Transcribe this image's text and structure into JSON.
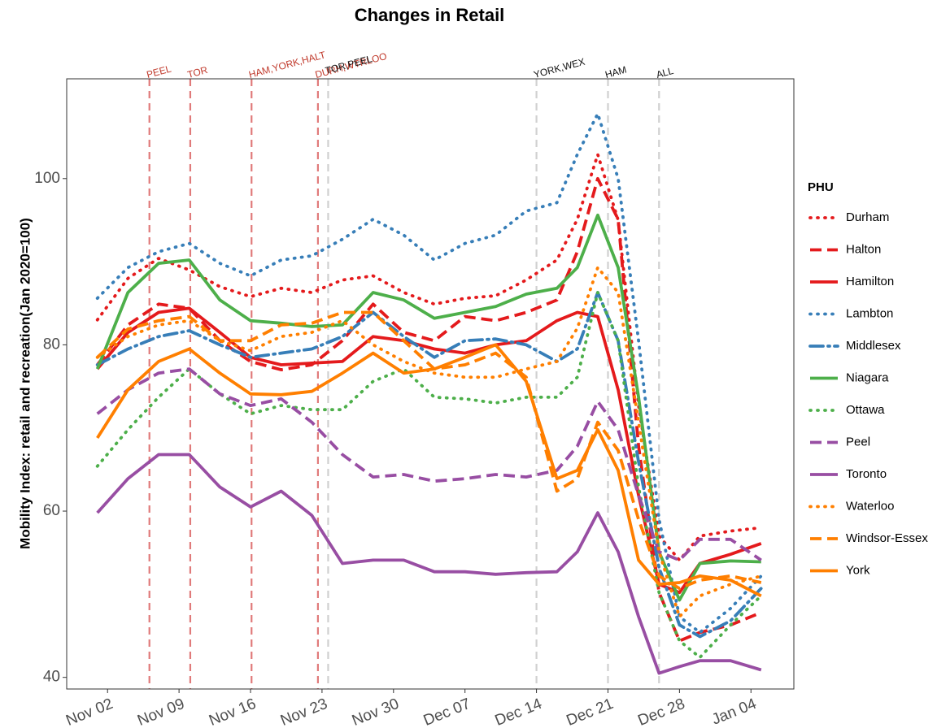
{
  "chart_data": {
    "type": "line",
    "title": "Changes in Retail",
    "y_label": "Mobility Index: retail and recreation(Jan 2020=100)",
    "legend_title": "PHU",
    "xlim": [
      -4,
      67.2
    ],
    "ylim": [
      38.6,
      112
    ],
    "xticks": [
      {
        "value": 0,
        "label": "Nov 02"
      },
      {
        "value": 7,
        "label": "Nov 09"
      },
      {
        "value": 14,
        "label": "Nov 16"
      },
      {
        "value": 21,
        "label": "Nov 23"
      },
      {
        "value": 28,
        "label": "Nov 30"
      },
      {
        "value": 35,
        "label": "Dec 07"
      },
      {
        "value": 42,
        "label": "Dec 14"
      },
      {
        "value": 49,
        "label": "Dec 21"
      },
      {
        "value": 56,
        "label": "Dec 28"
      },
      {
        "value": 63,
        "label": "Jan 04"
      }
    ],
    "yticks": [
      40,
      60,
      80,
      100
    ],
    "grid": false,
    "vlines": [
      {
        "x": 4.1,
        "label": "PEEL",
        "color": "#e07a7a"
      },
      {
        "x": 8.1,
        "label": "TOR",
        "color": "#e07a7a"
      },
      {
        "x": 14.1,
        "label": "HAM,YORK,HALT",
        "color": "#e07a7a"
      },
      {
        "x": 20.6,
        "label": "DURH,WTRLOO",
        "color": "#e07a7a"
      },
      {
        "x": 21.6,
        "label": "TOR,PEEL",
        "color": "#d0d0d0"
      },
      {
        "x": 42,
        "label": "YORK,WEX",
        "color": "#d0d0d0"
      },
      {
        "x": 49,
        "label": "HAM",
        "color": "#d0d0d0"
      },
      {
        "x": 54,
        "label": "ALL",
        "color": "#d0d0d0"
      }
    ],
    "x": [
      -1,
      2,
      5,
      8,
      11,
      14,
      17,
      20,
      23,
      26,
      29,
      32,
      35,
      38,
      41,
      44,
      46,
      48,
      50,
      52,
      54,
      56,
      58,
      61,
      64
    ],
    "series": [
      {
        "name": "Durham",
        "color": "#e41a1c",
        "linestyle": "dotted",
        "values": [
          83,
          88,
          90.4,
          89,
          87,
          85.8,
          86.8,
          86.3,
          87.8,
          88.3,
          86.3,
          84.9,
          85.6,
          85.9,
          87.8,
          90.2,
          95.1,
          102.9,
          95,
          72.7,
          57,
          54.1,
          57,
          57.6,
          58
        ]
      },
      {
        "name": "Halton",
        "color": "#e41a1c",
        "linestyle": "dashed",
        "values": [
          77.6,
          82.4,
          84.9,
          84.4,
          80.5,
          78,
          77,
          77.6,
          80.5,
          84.9,
          81.5,
          80.5,
          83.4,
          82.9,
          83.9,
          85.4,
          91.2,
          100,
          95.1,
          67.8,
          50.2,
          44.4,
          45.4,
          46.3,
          47.8
        ]
      },
      {
        "name": "Hamilton",
        "color": "#e41a1c",
        "linestyle": "solid",
        "values": [
          77.1,
          81.5,
          83.9,
          84.4,
          81.5,
          78.5,
          77.6,
          77.8,
          78,
          81,
          80.5,
          79.5,
          79,
          80,
          80.5,
          82.9,
          83.9,
          83.4,
          74.6,
          61.9,
          51.2,
          50.2,
          53.7,
          54.8,
          56.1
        ]
      },
      {
        "name": "Lambton",
        "color": "#377eb8",
        "linestyle": "dotted",
        "values": [
          85.6,
          89.3,
          91.2,
          92.2,
          89.8,
          88.3,
          90.2,
          90.7,
          92.7,
          95.1,
          93.2,
          90.2,
          92.2,
          93.2,
          96.1,
          97.1,
          102.9,
          107.8,
          100,
          80.5,
          59,
          47.3,
          45.4,
          48.3,
          52.2
        ]
      },
      {
        "name": "Middlesex",
        "color": "#377eb8",
        "linestyle": "dashdot",
        "values": [
          77.6,
          79.5,
          81,
          81.7,
          80,
          78.5,
          79,
          79.5,
          81,
          83.9,
          81,
          78.5,
          80.5,
          80.7,
          80,
          78,
          79.5,
          86.3,
          80.5,
          65.9,
          53.2,
          46.3,
          44.9,
          46.8,
          50.7
        ]
      },
      {
        "name": "Niagara",
        "color": "#4daf4a",
        "linestyle": "solid",
        "values": [
          77.1,
          86.3,
          89.8,
          90.2,
          85.4,
          82.9,
          82.6,
          82.2,
          82.4,
          86.3,
          85.4,
          83.2,
          83.9,
          84.6,
          86.1,
          86.8,
          89.3,
          95.6,
          89.3,
          73.7,
          55.1,
          49.3,
          53.7,
          54,
          53.9
        ]
      },
      {
        "name": "Ottawa",
        "color": "#4daf4a",
        "linestyle": "dotted",
        "values": [
          65.4,
          69.8,
          73.7,
          77.1,
          74.1,
          71.7,
          72.7,
          72.2,
          72.2,
          75.6,
          77.1,
          73.7,
          73.5,
          73,
          73.7,
          73.7,
          76.1,
          86.3,
          80.5,
          62.9,
          50.2,
          44.4,
          42.4,
          46.3,
          49.8
        ]
      },
      {
        "name": "Peel",
        "color": "#984ea3",
        "linestyle": "dashed",
        "values": [
          71.7,
          74.6,
          76.6,
          77.1,
          74.1,
          72.7,
          73.5,
          70.7,
          66.8,
          64.1,
          64.4,
          63.6,
          63.9,
          64.4,
          64.1,
          64.9,
          67.8,
          73.2,
          69.8,
          61.9,
          55.1,
          54.1,
          56.6,
          56.6,
          54.1
        ]
      },
      {
        "name": "Toronto",
        "color": "#984ea3",
        "linestyle": "solid",
        "values": [
          59.8,
          63.9,
          66.8,
          66.8,
          62.9,
          60.5,
          62.4,
          59.5,
          53.7,
          54.1,
          54.1,
          52.7,
          52.7,
          52.4,
          52.6,
          52.7,
          55.1,
          59.8,
          55.1,
          47.3,
          40.5,
          41.3,
          42,
          42,
          40.9
        ]
      },
      {
        "name": "Waterloo",
        "color": "#ff7f00",
        "linestyle": "dotted",
        "values": [
          78.5,
          81,
          82.4,
          82.9,
          80.5,
          79.3,
          81,
          81.5,
          82.9,
          80,
          78,
          76.6,
          76.1,
          76.1,
          77.1,
          78,
          82,
          89.3,
          86.3,
          70.7,
          55.1,
          47.3,
          49.8,
          51.2,
          52.2
        ]
      },
      {
        "name": "Windsor-Essex",
        "color": "#ff7f00",
        "linestyle": "dashed",
        "values": [
          78.5,
          81.9,
          82.9,
          83.4,
          80.5,
          80.5,
          82.4,
          82.6,
          83.9,
          83.9,
          80.5,
          77.1,
          77.6,
          79,
          76.1,
          62.4,
          63.9,
          70.7,
          67.3,
          59,
          52.2,
          50.7,
          51.7,
          52.2,
          51.4
        ]
      },
      {
        "name": "York",
        "color": "#ff7f00",
        "linestyle": "solid",
        "values": [
          68.8,
          74.6,
          78,
          79.5,
          76.6,
          74.1,
          74,
          74.4,
          76.6,
          79,
          76.6,
          77.1,
          78.5,
          80,
          75.6,
          63.9,
          64.9,
          69.8,
          64.9,
          54.1,
          51.2,
          51.4,
          52.2,
          51.7,
          49.8
        ]
      }
    ]
  }
}
